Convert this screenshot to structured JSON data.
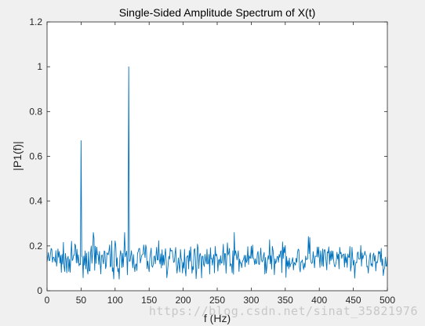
{
  "chart_data": {
    "type": "line",
    "title": "Single-Sided Amplitude Spectrum of X(t)",
    "xlabel": "f (Hz)",
    "ylabel": "|P1(f)|",
    "xlim": [
      0,
      500
    ],
    "ylim": [
      0,
      1.2
    ],
    "x_ticks": [
      "0",
      "50",
      "100",
      "150",
      "200",
      "250",
      "300",
      "350",
      "400",
      "450",
      "500"
    ],
    "y_ticks": [
      "0",
      "0.2",
      "0.4",
      "0.6",
      "0.8",
      "1",
      "1.2"
    ],
    "grid": false,
    "legend": "none",
    "series": [
      {
        "color": "#0072bd",
        "x_step": 1,
        "x_start": 0,
        "noise_range": [
          0.0,
          0.22
        ],
        "peaks": [
          {
            "x": 50,
            "y": 0.67
          },
          {
            "x": 120,
            "y": 1.0
          }
        ]
      }
    ]
  },
  "watermark": "https://blog.csdn.net/sinat_35821976",
  "colors": {
    "figure_background": "#f0f0f0",
    "axes_background": "#ffffff",
    "axes_edge": "#262626",
    "line": "#0072bd"
  }
}
